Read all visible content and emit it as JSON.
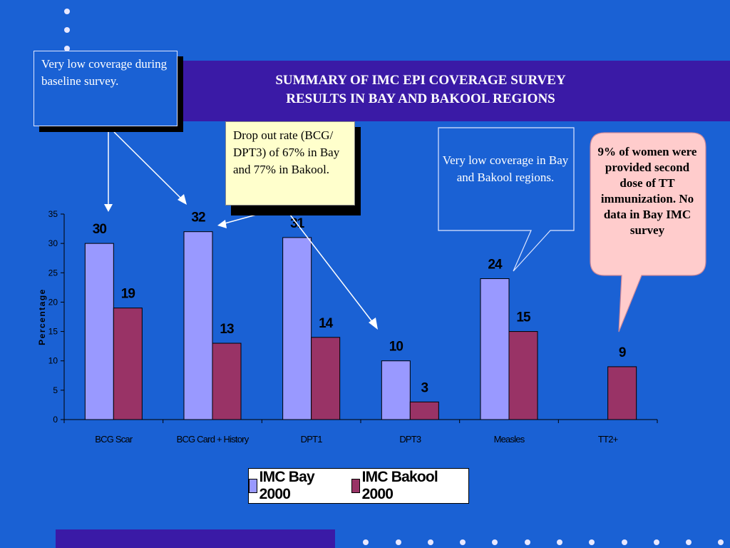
{
  "slide": {
    "title": "SUMMARY OF IMC EPI COVERAGE SURVEY\nRESULTS IN BAY AND BAKOOL REGIONS",
    "notes": {
      "baseline": "Very low coverage during baseline survey.",
      "dropout": "Drop out rate (BCG/ DPT3) of 67% in Bay and 77% in Bakool.",
      "measles": "Very low coverage in Bay and Bakool regions.",
      "tt": "9%  of women were provided second dose of TT immunization. No data in Bay IMC survey"
    },
    "colors": {
      "background": "#1a61d4",
      "band": "#3a1aa6",
      "bay": "#9999ff",
      "bakool": "#993366",
      "callout_pink": "#ffcccc",
      "callout_yellow": "#ffffcc"
    }
  },
  "chart_data": {
    "type": "bar",
    "categories": [
      "BCG Scar",
      "BCG Card + History",
      "DPT1",
      "DPT3",
      "Measles",
      "TT2+"
    ],
    "series": [
      {
        "name": "IMC Bay 2000",
        "values": [
          30,
          32,
          31,
          10,
          24,
          null
        ],
        "color": "#9999ff"
      },
      {
        "name": "IMC Bakool 2000",
        "values": [
          19,
          13,
          14,
          3,
          15,
          9
        ],
        "color": "#993366"
      }
    ],
    "ylabel": "Percentage",
    "xlabel": "",
    "ylim": [
      0,
      35
    ],
    "yticks": [
      0,
      5,
      10,
      15,
      20,
      25,
      30,
      35
    ],
    "legend": "bottom"
  }
}
